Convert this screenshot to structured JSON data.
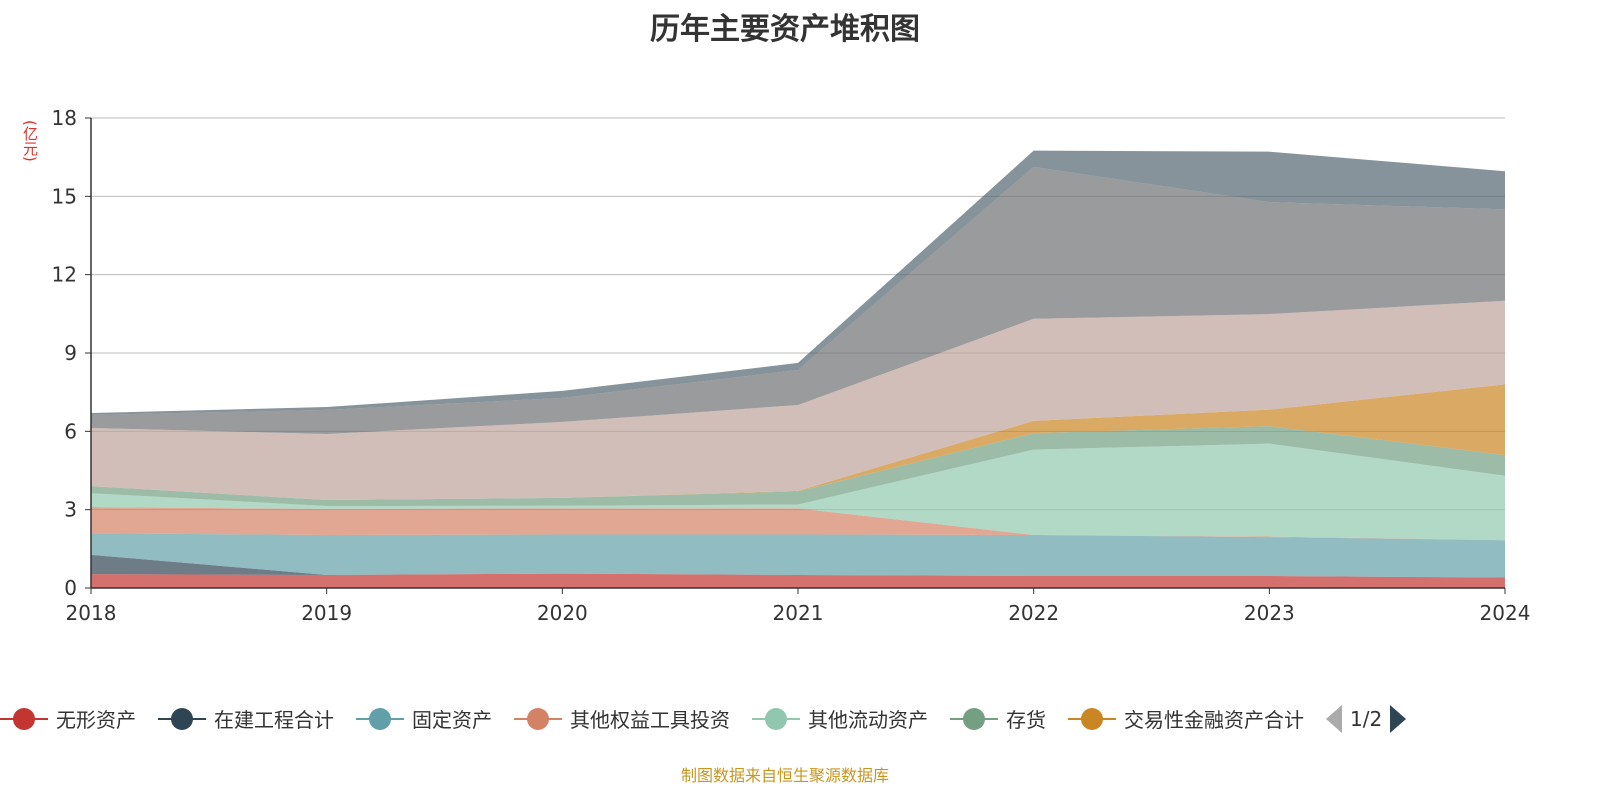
{
  "chart_data": {
    "type": "area",
    "stacked": true,
    "title": "历年主要资产堆积图",
    "ylabel": "(亿元)",
    "xlabel": "",
    "ylim": [
      0,
      18
    ],
    "yticks": [
      0,
      3,
      6,
      9,
      12,
      15,
      18
    ],
    "grid": true,
    "legend_position": "bottom",
    "categories": [
      "2018",
      "2019",
      "2020",
      "2021",
      "2022",
      "2023",
      "2024"
    ],
    "series": [
      {
        "name": "无形资产",
        "color": "#c23531",
        "values": [
          0.53,
          0.5,
          0.55,
          0.5,
          0.46,
          0.46,
          0.4
        ]
      },
      {
        "name": "在建工程合计",
        "color": "#2f4554",
        "values": [
          0.74,
          0.0,
          0.0,
          0.0,
          0.0,
          0.0,
          0.0
        ]
      },
      {
        "name": "固定资产",
        "color": "#61a0a8",
        "values": [
          0.83,
          1.53,
          1.5,
          1.55,
          1.57,
          1.49,
          1.43
        ]
      },
      {
        "name": "其他权益工具投资",
        "color": "#d48265",
        "values": [
          1.0,
          1.0,
          1.0,
          1.0,
          0.0,
          0.02,
          0.0
        ]
      },
      {
        "name": "其他流动资产",
        "color": "#91c7ae",
        "values": [
          0.53,
          0.11,
          0.1,
          0.15,
          3.27,
          3.56,
          2.47
        ]
      },
      {
        "name": "存货",
        "color": "#749f83",
        "values": [
          0.27,
          0.23,
          0.3,
          0.5,
          0.63,
          0.67,
          0.79
        ]
      },
      {
        "name": "交易性金融资产合计",
        "color": "#ca8622",
        "values": [
          0.0,
          0.0,
          0.0,
          0.02,
          0.47,
          0.63,
          2.71
        ]
      },
      {
        "name": "",
        "color": "#bda29a",
        "values": [
          2.23,
          2.53,
          2.91,
          3.29,
          3.91,
          3.66,
          3.2
        ]
      },
      {
        "name": "",
        "color": "#6e7074",
        "values": [
          0.5,
          0.92,
          0.92,
          1.34,
          5.82,
          4.29,
          3.5
        ]
      },
      {
        "name": "",
        "color": "#546570",
        "values": [
          0.07,
          0.11,
          0.27,
          0.27,
          0.62,
          1.93,
          1.46
        ]
      }
    ]
  },
  "legend": {
    "page": "1/2"
  },
  "source": "制图数据来自恒生聚源数据库"
}
